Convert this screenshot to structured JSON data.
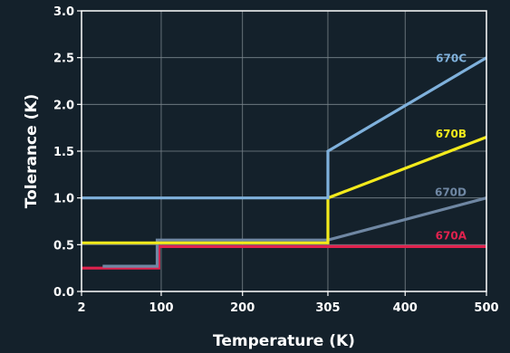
{
  "chart_data": {
    "type": "line",
    "title": "",
    "xlabel": "Temperature (K)",
    "ylabel": "Tolerance (K)",
    "x_ticks": [
      {
        "value": 2,
        "label": "2"
      },
      {
        "value": 100,
        "label": "100"
      },
      {
        "value": 200,
        "label": "200"
      },
      {
        "value": 305,
        "label": "305"
      },
      {
        "value": 400,
        "label": "400"
      },
      {
        "value": 500,
        "label": "500"
      }
    ],
    "y_ticks": [
      {
        "value": 0.0,
        "label": "0.0"
      },
      {
        "value": 0.5,
        "label": "0.5"
      },
      {
        "value": 1.0,
        "label": "1.0"
      },
      {
        "value": 1.5,
        "label": "1.5"
      },
      {
        "value": 2.0,
        "label": "2.0"
      },
      {
        "value": 2.5,
        "label": "2.5"
      },
      {
        "value": 3.0,
        "label": "3.0"
      }
    ],
    "xlim": [
      2,
      500
    ],
    "ylim": [
      0,
      3.0
    ],
    "grid": true,
    "background_color": "#14212b",
    "grid_color": "#7a858c",
    "series": [
      {
        "name": "670A",
        "color": "#e0224e",
        "points": [
          [
            2,
            0.25
          ],
          [
            97,
            0.25
          ],
          [
            97,
            0.48
          ],
          [
            500,
            0.48
          ]
        ]
      },
      {
        "name": "670D",
        "color": "#6f87a3",
        "points": [
          [
            28,
            0.27
          ],
          [
            95,
            0.27
          ],
          [
            95,
            0.55
          ],
          [
            305,
            0.55
          ],
          [
            500,
            1.0
          ]
        ]
      },
      {
        "name": "670B",
        "color": "#f3ea1c",
        "points": [
          [
            2,
            0.52
          ],
          [
            305,
            0.52
          ],
          [
            305,
            1.0
          ],
          [
            500,
            1.65
          ]
        ]
      },
      {
        "name": "670C",
        "color": "#7fb1dc",
        "points": [
          [
            2,
            1.0
          ],
          [
            305,
            1.0
          ],
          [
            305,
            1.5
          ],
          [
            500,
            2.5
          ]
        ]
      }
    ]
  }
}
